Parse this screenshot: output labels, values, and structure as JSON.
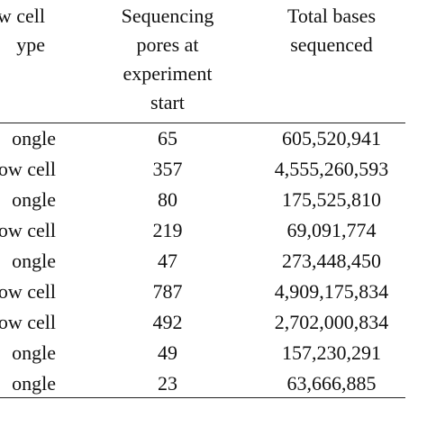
{
  "table": {
    "headers": {
      "type": [
        "ow cell",
        "ype"
      ],
      "pores": [
        "Sequencing",
        "pores at",
        "experiment",
        "start"
      ],
      "bases": [
        "Total bases",
        "sequenced"
      ]
    },
    "rows": [
      {
        "type": "ongle",
        "pores": "65",
        "bases": "605,520,941"
      },
      {
        "type": "ow cell",
        "pores": "357",
        "bases": "4,555,260,593"
      },
      {
        "type": "ongle",
        "pores": "80",
        "bases": "175,525,810"
      },
      {
        "type": "ow cell",
        "pores": "219",
        "bases": "69,091,774"
      },
      {
        "type": "ongle",
        "pores": "47",
        "bases": "273,448,450"
      },
      {
        "type": "ow cell",
        "pores": "787",
        "bases": "4,909,175,834"
      },
      {
        "type": "ow cell",
        "pores": "492",
        "bases": "2,702,000,834"
      },
      {
        "type": "ongle",
        "pores": "49",
        "bases": "157,230,291"
      },
      {
        "type": "ongle",
        "pores": "23",
        "bases": "63,666,885"
      }
    ]
  }
}
